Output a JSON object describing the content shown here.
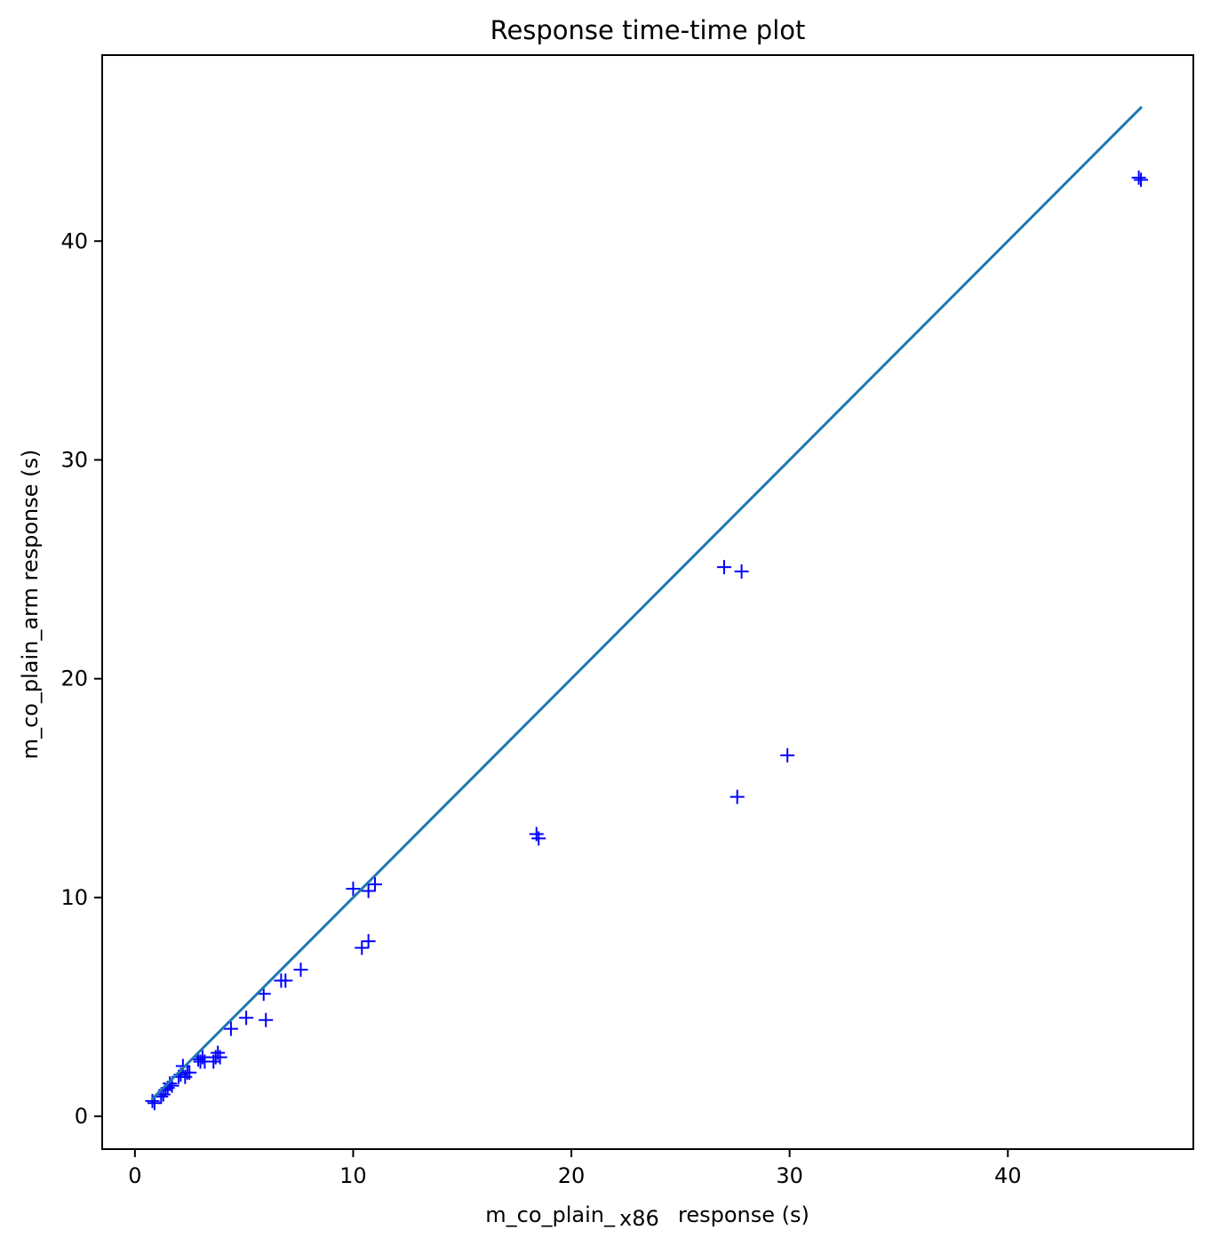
{
  "chart_data": {
    "type": "scatter",
    "title": "Response time-time plot",
    "xlabel": "m_co_plain_",
    "xlabel_suffix": "x86",
    "xlabel_unit": "response (s)",
    "ylabel": "m_co_plain_arm response (s)",
    "xlim": [
      -1.5,
      48.5
    ],
    "ylim": [
      -1.5,
      48.5
    ],
    "xticks": [
      0,
      10,
      20,
      30,
      40
    ],
    "yticks": [
      0,
      10,
      20,
      30,
      40
    ],
    "grid": false,
    "colors": {
      "points": "#0000ff",
      "line": "#1f77b4",
      "axes": "#000000"
    },
    "marker": "+",
    "reference_line": {
      "x": [
        0.8,
        46.1
      ],
      "y": [
        0.8,
        46.1
      ]
    },
    "points": [
      {
        "x": 0.8,
        "y": 0.7
      },
      {
        "x": 0.9,
        "y": 0.6
      },
      {
        "x": 1.2,
        "y": 0.9
      },
      {
        "x": 1.3,
        "y": 1.0
      },
      {
        "x": 1.4,
        "y": 1.2
      },
      {
        "x": 1.5,
        "y": 1.3
      },
      {
        "x": 1.6,
        "y": 1.5
      },
      {
        "x": 1.7,
        "y": 1.4
      },
      {
        "x": 2.0,
        "y": 1.8
      },
      {
        "x": 2.1,
        "y": 1.9
      },
      {
        "x": 2.2,
        "y": 2.3
      },
      {
        "x": 2.3,
        "y": 1.8
      },
      {
        "x": 2.4,
        "y": 2.0
      },
      {
        "x": 2.5,
        "y": 2.0
      },
      {
        "x": 2.9,
        "y": 2.6
      },
      {
        "x": 3.0,
        "y": 2.5
      },
      {
        "x": 3.1,
        "y": 2.7
      },
      {
        "x": 3.2,
        "y": 2.5
      },
      {
        "x": 3.6,
        "y": 2.5
      },
      {
        "x": 3.7,
        "y": 2.7
      },
      {
        "x": 3.8,
        "y": 2.9
      },
      {
        "x": 3.9,
        "y": 2.7
      },
      {
        "x": 4.4,
        "y": 4.0
      },
      {
        "x": 5.1,
        "y": 4.5
      },
      {
        "x": 5.9,
        "y": 5.6
      },
      {
        "x": 6.0,
        "y": 4.4
      },
      {
        "x": 6.7,
        "y": 6.2
      },
      {
        "x": 6.9,
        "y": 6.2
      },
      {
        "x": 7.6,
        "y": 6.7
      },
      {
        "x": 10.0,
        "y": 10.4
      },
      {
        "x": 10.4,
        "y": 7.7
      },
      {
        "x": 10.7,
        "y": 8.0
      },
      {
        "x": 10.7,
        "y": 10.3
      },
      {
        "x": 11.0,
        "y": 10.6
      },
      {
        "x": 18.4,
        "y": 12.9
      },
      {
        "x": 18.5,
        "y": 12.7
      },
      {
        "x": 27.0,
        "y": 25.1
      },
      {
        "x": 27.6,
        "y": 14.6
      },
      {
        "x": 27.8,
        "y": 24.9
      },
      {
        "x": 29.9,
        "y": 16.5
      },
      {
        "x": 46.0,
        "y": 42.9
      },
      {
        "x": 46.1,
        "y": 42.8
      }
    ]
  }
}
